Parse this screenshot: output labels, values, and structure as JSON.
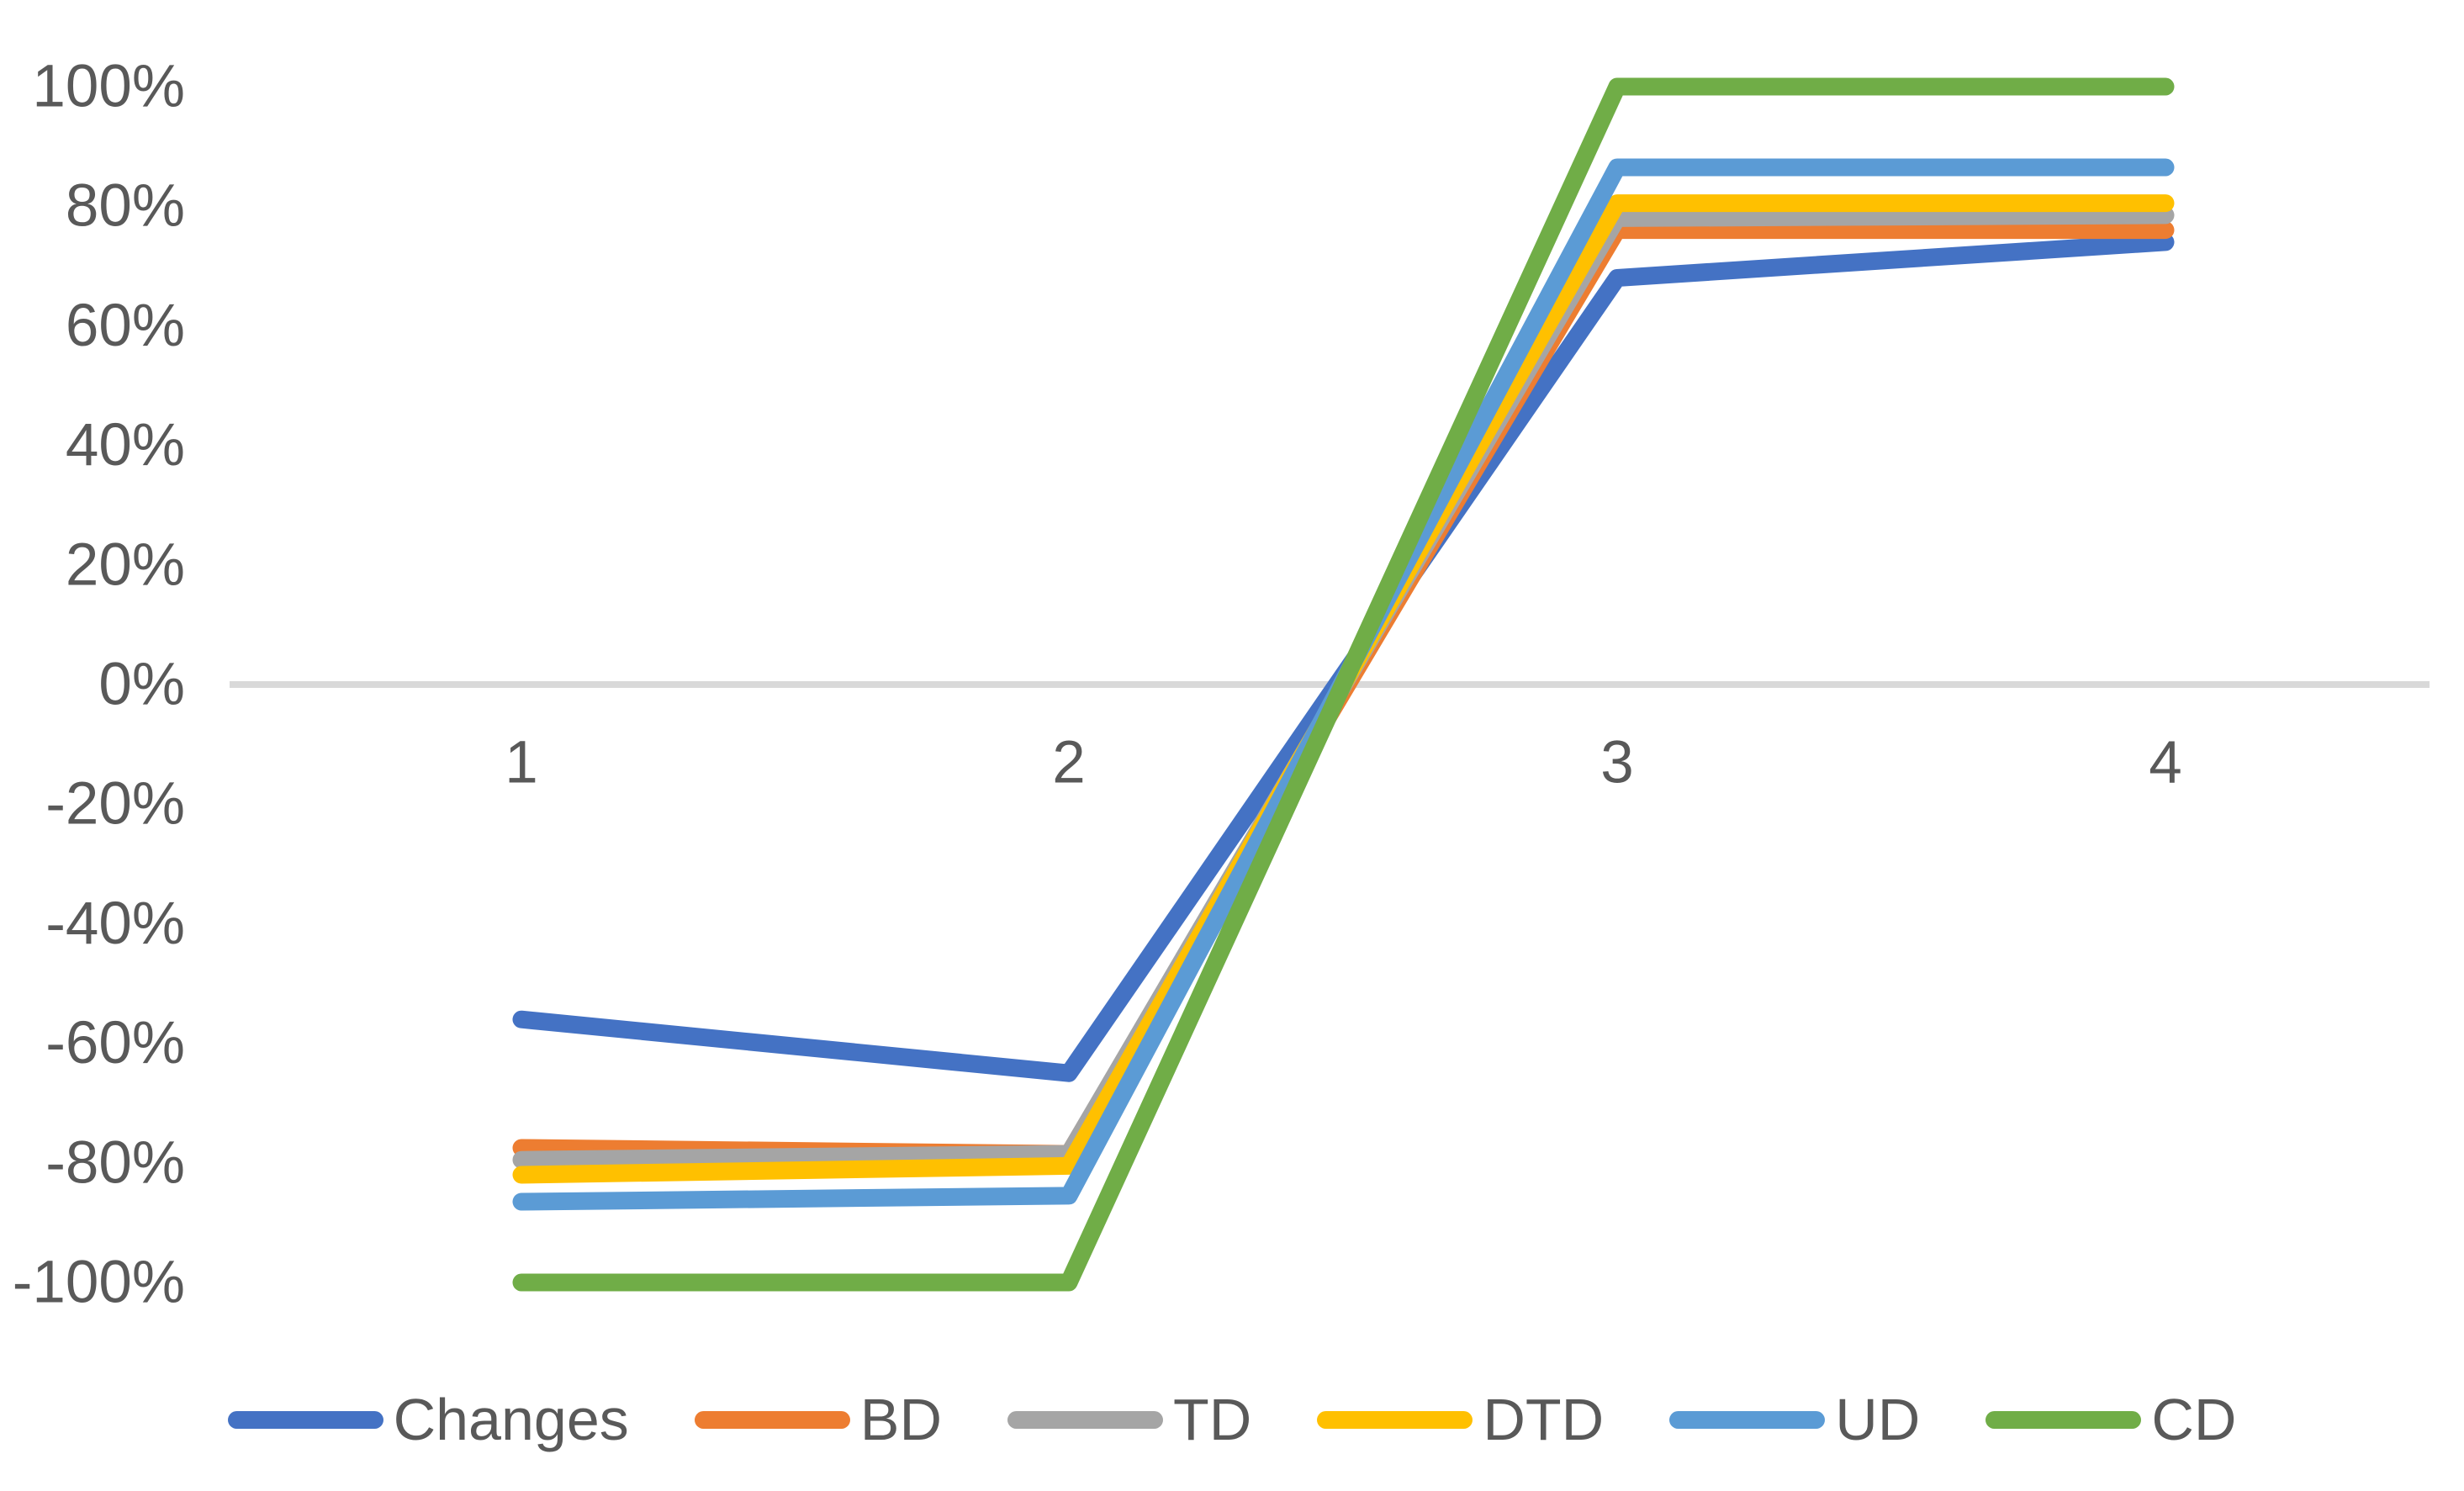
{
  "page": {
    "background": "#FFFFFF"
  },
  "colors": {
    "axis_text": "#595959",
    "gridline": "#D9D9D9",
    "background": "#FFFFFF"
  },
  "chart_data": {
    "type": "line",
    "title": "",
    "categories": [
      "1",
      "2",
      "3",
      "4"
    ],
    "x": [
      1,
      2,
      3,
      4
    ],
    "series": [
      {
        "name": "Changes",
        "color": "#4472C4",
        "values_pct": [
          -56,
          -65,
          68,
          74
        ]
      },
      {
        "name": "BD",
        "color": "#ED7D31",
        "values_pct": [
          -77.5,
          -78.5,
          76,
          76
        ]
      },
      {
        "name": "TD",
        "color": "#A5A5A5",
        "values_pct": [
          -79.5,
          -78.5,
          78,
          78.5
        ]
      },
      {
        "name": "DTD",
        "color": "#FFC000",
        "values_pct": [
          -82,
          -80.5,
          80.5,
          80.5
        ]
      },
      {
        "name": "UD",
        "color": "#5B9BD5",
        "values_pct": [
          -86.5,
          -85.5,
          86.5,
          86.5
        ]
      },
      {
        "name": "CD",
        "color": "#70AD47",
        "values_pct": [
          -100,
          -100,
          100,
          100
        ]
      }
    ],
    "y_axis": {
      "format": "percent",
      "range": [
        -100,
        100
      ],
      "ticks": [
        {
          "label": "100%",
          "value": 100
        },
        {
          "label": "80%",
          "value": 80
        },
        {
          "label": "60%",
          "value": 60
        },
        {
          "label": "40%",
          "value": 40
        },
        {
          "label": "20%",
          "value": 20
        },
        {
          "label": "0%",
          "value": 0
        },
        {
          "label": "-20%",
          "value": -20
        },
        {
          "label": "-40%",
          "value": -40
        },
        {
          "label": "-60%",
          "value": -60
        },
        {
          "label": "-80%",
          "value": -80
        },
        {
          "label": "-100%",
          "value": -100
        }
      ]
    },
    "x_axis": {
      "tick_labels": [
        "1",
        "2",
        "3",
        "4"
      ]
    },
    "grid": "zero-line-only",
    "legend": {
      "position": "bottom",
      "entries": [
        "Changes",
        "BD",
        "TD",
        "DTD",
        "UD",
        "CD"
      ]
    }
  }
}
